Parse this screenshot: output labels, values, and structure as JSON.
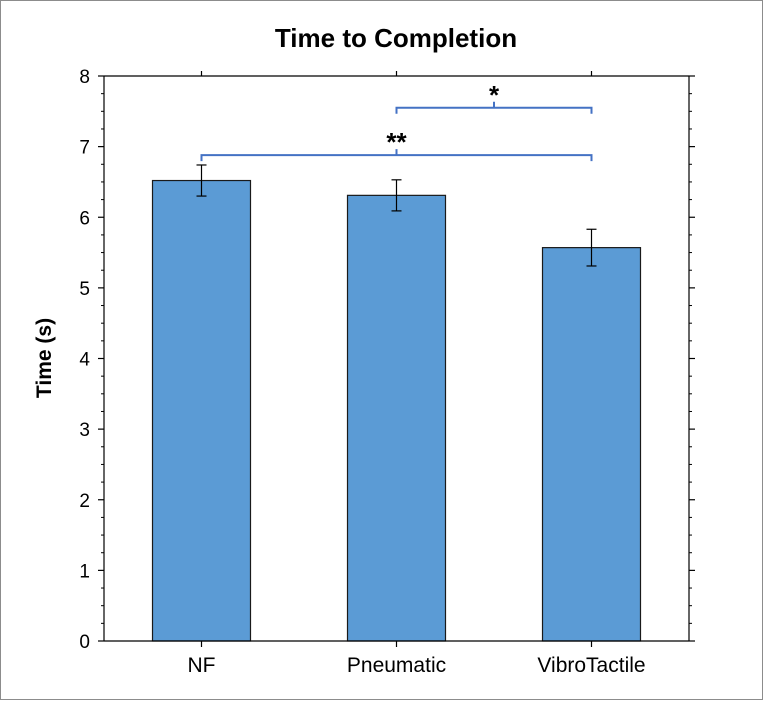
{
  "chart_data": {
    "type": "bar",
    "title": "Time to Completion",
    "xlabel": "",
    "ylabel": "Time (s)",
    "ylim": [
      0,
      8
    ],
    "yticks": [
      "0",
      "1",
      "2",
      "3",
      "4",
      "5",
      "6",
      "7",
      "8"
    ],
    "categories": [
      "NF",
      "Pneumatic",
      "VibroTactile"
    ],
    "values": [
      6.52,
      6.31,
      5.57
    ],
    "errors": [
      0.22,
      0.22,
      0.26
    ],
    "bar_color": "#5b9bd5",
    "bracket_color": "#4472c4",
    "grid": false,
    "annotations": [
      {
        "label": "*",
        "from": "Pneumatic",
        "to": "VibroTactile",
        "y": 7.55
      },
      {
        "label": "**",
        "from": "NF",
        "to": "VibroTactile",
        "y": 6.88
      }
    ]
  }
}
